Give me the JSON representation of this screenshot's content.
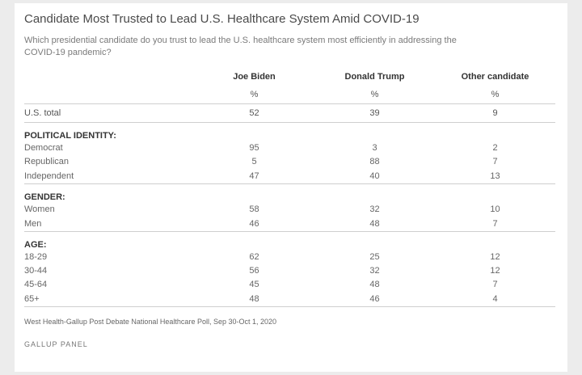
{
  "title": "Candidate Most Trusted to Lead U.S. Healthcare System Amid COVID-19",
  "subtitle": "Which presidential candidate do you trust to lead the U.S. healthcare system most efficiently in addressing the COVID-19 pandemic?",
  "footer": "West Health-Gallup Post Debate National Healthcare Poll, Sep 30-Oct 1, 2020",
  "brand": "GALLUP PANEL",
  "chart_data": {
    "type": "table",
    "columns": [
      "Joe Biden",
      "Donald Trump",
      "Other candidate"
    ],
    "unit": "%",
    "total": {
      "label": "U.S. total",
      "values": [
        52,
        39,
        9
      ]
    },
    "groups": [
      {
        "label": "POLITICAL IDENTITY:",
        "rows": [
          {
            "label": "Democrat",
            "values": [
              95,
              3,
              2
            ]
          },
          {
            "label": "Republican",
            "values": [
              5,
              88,
              7
            ]
          },
          {
            "label": "Independent",
            "values": [
              47,
              40,
              13
            ]
          }
        ]
      },
      {
        "label": "GENDER:",
        "rows": [
          {
            "label": "Women",
            "values": [
              58,
              32,
              10
            ]
          },
          {
            "label": "Men",
            "values": [
              46,
              48,
              7
            ]
          }
        ]
      },
      {
        "label": "AGE:",
        "rows": [
          {
            "label": "18-29",
            "values": [
              62,
              25,
              12
            ]
          },
          {
            "label": "30-44",
            "values": [
              56,
              32,
              12
            ]
          },
          {
            "label": "45-64",
            "values": [
              45,
              48,
              7
            ]
          },
          {
            "label": "65+",
            "values": [
              48,
              46,
              4
            ]
          }
        ]
      }
    ]
  }
}
